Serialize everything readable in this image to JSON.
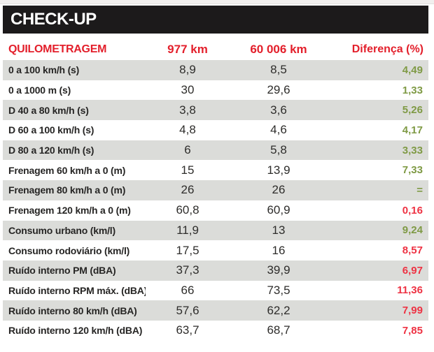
{
  "title": "CHECK-UP",
  "chart_data": {
    "type": "table",
    "title": "CHECK-UP",
    "columns": [
      "QUILOMETRAGEM",
      "977 km",
      "60 006 km",
      "Diferença (%)"
    ],
    "rows": [
      {
        "label": "0 a 100 km/h (s)",
        "km977": "8,9",
        "km60006": "8,5",
        "diff": "4,49",
        "trend": "positive"
      },
      {
        "label": "0 a 1000 m (s)",
        "km977": "30",
        "km60006": "29,6",
        "diff": "1,33",
        "trend": "positive"
      },
      {
        "label": "D 40 a 80 km/h (s)",
        "km977": "3,8",
        "km60006": "3,6",
        "diff": "5,26",
        "trend": "positive"
      },
      {
        "label": "D 60 a 100 km/h (s)",
        "km977": "4,8",
        "km60006": "4,6",
        "diff": "4,17",
        "trend": "positive"
      },
      {
        "label": "D 80 a 120 km/h (s)",
        "km977": "6",
        "km60006": "5,8",
        "diff": "3,33",
        "trend": "positive"
      },
      {
        "label": "Frenagem 60 km/h a 0 (m)",
        "km977": "15",
        "km60006": "13,9",
        "diff": "7,33",
        "trend": "positive"
      },
      {
        "label": "Frenagem 80 km/h a 0 (m)",
        "km977": "26",
        "km60006": "26",
        "diff": "=",
        "trend": "equal"
      },
      {
        "label": "Frenagem 120 km/h a 0 (m)",
        "km977": "60,8",
        "km60006": "60,9",
        "diff": "0,16",
        "trend": "negative"
      },
      {
        "label": "Consumo urbano (km/l)",
        "km977": "11,9",
        "km60006": "13",
        "diff": "9,24",
        "trend": "positive"
      },
      {
        "label": "Consumo rodoviário (km/l)",
        "km977": "17,5",
        "km60006": "16",
        "diff": "8,57",
        "trend": "negative"
      },
      {
        "label": "Ruído interno PM (dBA)",
        "km977": "37,3",
        "km60006": "39,9",
        "diff": "6,97",
        "trend": "negative"
      },
      {
        "label": "Ruído interno RPM máx. (dBA)",
        "km977": "66",
        "km60006": "73,5",
        "diff": "11,36",
        "trend": "negative"
      },
      {
        "label": "Ruído interno 80 km/h (dBA)",
        "km977": "57,6",
        "km60006": "62,2",
        "diff": "7,99",
        "trend": "negative"
      },
      {
        "label": "Ruído interno 120 km/h (dBA)",
        "km977": "63,7",
        "km60006": "68,7",
        "diff": "7,85",
        "trend": "negative"
      }
    ]
  },
  "colors": {
    "title_bar_bg": "#1c1a1b",
    "title_bar_text": "#ffffff",
    "column_header_red": "#e31f2b",
    "positive_green": "#7f9a45",
    "negative_red": "#ee3243",
    "row_stripe_gray": "#dbdcd9",
    "row_text": "#2e2d2b"
  }
}
